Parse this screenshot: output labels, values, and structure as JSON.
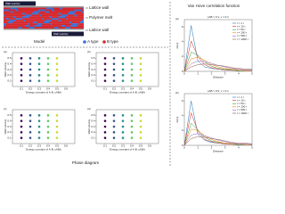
{
  "model": {
    "wall_top": "Wall velocity",
    "lattice_top": "Lattice wall",
    "melt": "Polymer melt",
    "lattice_bottom": "Lattice wall",
    "wall_bottom": "Wall velocity",
    "caption": "Model",
    "legend": [
      {
        "name": "A type",
        "color": "#3b6fd4"
      },
      {
        "name": "B type",
        "color": "#d6262b"
      }
    ]
  },
  "phase_caption": "Phase diagram",
  "vanhove_title": "Van Hove correlation function",
  "chart_data": [
    {
      "type": "scatter",
      "label": "(a)",
      "xlabel": "Energy constant of A-B, εAB/ε",
      "ylabel": "Wall velocity",
      "xlim": [
        0,
        0.7
      ],
      "xticks": [
        0.1,
        0.2,
        0.3,
        0.4,
        0.5,
        0.6
      ],
      "ylim": [
        0,
        0.6
      ],
      "yticks": [
        0.1,
        0.2,
        0.3,
        0.4,
        0.5
      ],
      "series": [
        {
          "color": "#440154",
          "x": [
            0.1,
            0.1,
            0.1,
            0.1,
            0.1
          ],
          "y": [
            0.1,
            0.2,
            0.3,
            0.4,
            0.5
          ]
        },
        {
          "color": "#3b528b",
          "x": [
            0.2,
            0.2,
            0.2,
            0.2,
            0.2
          ],
          "y": [
            0.1,
            0.2,
            0.3,
            0.4,
            0.5
          ]
        },
        {
          "color": "#21918c",
          "x": [
            0.3,
            0.3,
            0.3,
            0.3,
            0.3
          ],
          "y": [
            0.1,
            0.2,
            0.3,
            0.4,
            0.5
          ]
        },
        {
          "color": "#5ec962",
          "x": [
            0.4,
            0.4,
            0.4,
            0.4,
            0.4
          ],
          "y": [
            0.1,
            0.2,
            0.3,
            0.4,
            0.5
          ]
        },
        {
          "color": "#c8d93a",
          "x": [
            0.5,
            0.5,
            0.5,
            0.5,
            0.5
          ],
          "y": [
            0.1,
            0.2,
            0.3,
            0.4,
            0.5
          ]
        }
      ]
    },
    {
      "type": "scatter",
      "label": "(b)",
      "xlabel": "Energy constant of A-B, εAB/ε",
      "ylabel": "Wall velocity",
      "xlim": [
        0,
        0.7
      ],
      "xticks": [
        0.1,
        0.2,
        0.3,
        0.4,
        0.5,
        0.6
      ],
      "ylim": [
        0,
        0.6
      ],
      "yticks": [
        0.1,
        0.2,
        0.3,
        0.4,
        0.5
      ],
      "series": [
        {
          "color": "#440154",
          "x": [
            0.1,
            0.1,
            0.1,
            0.1,
            0.1
          ],
          "y": [
            0.1,
            0.2,
            0.3,
            0.4,
            0.5
          ]
        },
        {
          "color": "#3b528b",
          "x": [
            0.2,
            0.2,
            0.2,
            0.2,
            0.2
          ],
          "y": [
            0.1,
            0.2,
            0.3,
            0.4,
            0.5
          ]
        },
        {
          "color": "#21918c",
          "x": [
            0.3,
            0.3,
            0.3,
            0.3,
            0.3
          ],
          "y": [
            0.1,
            0.2,
            0.3,
            0.4,
            0.5
          ]
        },
        {
          "color": "#5ec962",
          "x": [
            0.4,
            0.4,
            0.4,
            0.4,
            0.4
          ],
          "y": [
            0.1,
            0.2,
            0.3,
            0.4,
            0.5
          ]
        },
        {
          "color": "#c8d93a",
          "x": [
            0.5,
            0.5,
            0.5,
            0.5,
            0.5
          ],
          "y": [
            0.1,
            0.2,
            0.3,
            0.4,
            0.5
          ]
        }
      ]
    },
    {
      "type": "scatter",
      "label": "(c)",
      "xlabel": "Energy constant of A-B, εAB/ε",
      "ylabel": "Wall velocity",
      "xlim": [
        0,
        0.7
      ],
      "xticks": [
        0.1,
        0.2,
        0.3,
        0.4,
        0.5,
        0.6
      ],
      "ylim": [
        0,
        0.6
      ],
      "yticks": [
        0.1,
        0.2,
        0.3,
        0.4,
        0.5
      ],
      "series": [
        {
          "color": "#440154",
          "x": [
            0.1,
            0.1,
            0.1,
            0.1,
            0.1
          ],
          "y": [
            0.1,
            0.2,
            0.3,
            0.4,
            0.5
          ]
        },
        {
          "color": "#3b528b",
          "x": [
            0.2,
            0.2,
            0.2,
            0.2,
            0.2
          ],
          "y": [
            0.1,
            0.2,
            0.3,
            0.4,
            0.5
          ]
        },
        {
          "color": "#21918c",
          "x": [
            0.3,
            0.3,
            0.3,
            0.3,
            0.3
          ],
          "y": [
            0.1,
            0.2,
            0.3,
            0.4,
            0.5
          ]
        },
        {
          "color": "#5ec962",
          "x": [
            0.4,
            0.4,
            0.4,
            0.4,
            0.4
          ],
          "y": [
            0.1,
            0.2,
            0.3,
            0.4,
            0.5
          ]
        },
        {
          "color": "#c8d93a",
          "x": [
            0.5,
            0.5,
            0.5,
            0.5,
            0.5
          ],
          "y": [
            0.1,
            0.2,
            0.3,
            0.4,
            0.5
          ]
        }
      ]
    },
    {
      "type": "scatter",
      "label": "(d)",
      "xlabel": "Energy constant of A-B, εAB/ε",
      "ylabel": "Wall velocity",
      "xlim": [
        0,
        0.7
      ],
      "xticks": [
        0.1,
        0.2,
        0.3,
        0.4,
        0.5,
        0.6
      ],
      "ylim": [
        0,
        0.6
      ],
      "yticks": [
        0.1,
        0.2,
        0.3,
        0.4,
        0.5
      ],
      "series": [
        {
          "color": "#440154",
          "x": [
            0.1,
            0.1,
            0.1,
            0.1,
            0.1
          ],
          "y": [
            0.1,
            0.2,
            0.3,
            0.4,
            0.5
          ]
        },
        {
          "color": "#3b528b",
          "x": [
            0.2,
            0.2,
            0.2,
            0.2,
            0.2
          ],
          "y": [
            0.1,
            0.2,
            0.3,
            0.4,
            0.5
          ]
        },
        {
          "color": "#21918c",
          "x": [
            0.3,
            0.3,
            0.3,
            0.3,
            0.3
          ],
          "y": [
            0.1,
            0.2,
            0.3,
            0.4,
            0.5
          ]
        },
        {
          "color": "#5ec962",
          "x": [
            0.4,
            0.4,
            0.4,
            0.4,
            0.4
          ],
          "y": [
            0.1,
            0.2,
            0.3,
            0.4,
            0.5
          ]
        },
        {
          "color": "#c8d93a",
          "x": [
            0.5,
            0.5,
            0.5,
            0.5,
            0.5
          ],
          "y": [
            0.1,
            0.2,
            0.3,
            0.4,
            0.5
          ]
        }
      ]
    },
    {
      "type": "line",
      "label": "(a)",
      "title": "εAB = 0.1, v = 0.1",
      "xlabel": "Distance",
      "ylabel": "G(r,t)",
      "xlim": [
        0,
        5
      ],
      "xticks": [
        0,
        1,
        2,
        3,
        4,
        5
      ],
      "ylim": [
        0,
        7
      ],
      "yticks": [
        0,
        2,
        4,
        6
      ],
      "x": [
        0,
        0.5,
        1,
        1.5,
        2,
        2.5,
        3,
        3.5,
        4,
        4.5,
        5
      ],
      "series": [
        {
          "name": "t = 1 τ",
          "color": "#1f77b4",
          "values": [
            0,
            6.2,
            1.4,
            0.6,
            0.4,
            0.3,
            0.2,
            0.15,
            0.1,
            0.1,
            0.1
          ]
        },
        {
          "name": "t = 10 τ",
          "color": "#d62728",
          "values": [
            0,
            4.1,
            2.0,
            0.9,
            0.5,
            0.3,
            0.2,
            0.15,
            0.1,
            0.1,
            0.1
          ]
        },
        {
          "name": "t = 50 τ",
          "color": "#2ca02c",
          "values": [
            0,
            2.6,
            2.2,
            1.3,
            0.7,
            0.4,
            0.3,
            0.2,
            0.1,
            0.1,
            0.1
          ]
        },
        {
          "name": "t = 100 τ",
          "color": "#ff7f0e",
          "values": [
            0,
            1.7,
            1.9,
            1.5,
            0.9,
            0.6,
            0.4,
            0.3,
            0.2,
            0.1,
            0.1
          ]
        },
        {
          "name": "t = 500 τ",
          "color": "#9467bd",
          "values": [
            0,
            1.0,
            1.4,
            1.3,
            1.1,
            0.8,
            0.6,
            0.4,
            0.3,
            0.2,
            0.2
          ]
        },
        {
          "name": "t = 1000 τ",
          "color": "#8c564b",
          "values": [
            0,
            0.6,
            0.9,
            1.0,
            0.9,
            0.8,
            0.7,
            0.5,
            0.4,
            0.3,
            0.3
          ]
        }
      ]
    },
    {
      "type": "line",
      "label": "(b)",
      "title": "εAB = 0.5, v = 0.1",
      "xlabel": "Distance",
      "ylabel": "G(r,t)",
      "xlim": [
        0,
        5
      ],
      "xticks": [
        0,
        1,
        2,
        3,
        4,
        5
      ],
      "ylim": [
        0,
        7
      ],
      "yticks": [
        0,
        2,
        4,
        6
      ],
      "x": [
        0,
        0.5,
        1,
        1.5,
        2,
        2.5,
        3,
        3.5,
        4,
        4.5,
        5
      ],
      "series": [
        {
          "name": "t = 1 τ",
          "color": "#1f77b4",
          "values": [
            0,
            6.0,
            1.5,
            0.7,
            0.4,
            0.3,
            0.2,
            0.15,
            0.1,
            0.1,
            0.1
          ]
        },
        {
          "name": "t = 10 τ",
          "color": "#d62728",
          "values": [
            0,
            4.4,
            1.9,
            0.8,
            0.5,
            0.3,
            0.2,
            0.15,
            0.1,
            0.1,
            0.1
          ]
        },
        {
          "name": "t = 50 τ",
          "color": "#2ca02c",
          "values": [
            0,
            3.0,
            2.1,
            1.1,
            0.6,
            0.4,
            0.3,
            0.2,
            0.1,
            0.1,
            0.1
          ]
        },
        {
          "name": "t = 100 τ",
          "color": "#ff7f0e",
          "values": [
            0,
            2.2,
            2.0,
            1.3,
            0.8,
            0.5,
            0.3,
            0.2,
            0.2,
            0.1,
            0.1
          ]
        },
        {
          "name": "t = 500 τ",
          "color": "#9467bd",
          "values": [
            0,
            1.4,
            1.6,
            1.3,
            1.0,
            0.7,
            0.5,
            0.3,
            0.2,
            0.2,
            0.1
          ]
        },
        {
          "name": "t = 1000 τ",
          "color": "#8c564b",
          "values": [
            0,
            0.9,
            1.2,
            1.1,
            0.9,
            0.8,
            0.6,
            0.4,
            0.3,
            0.3,
            0.2
          ]
        }
      ]
    }
  ]
}
